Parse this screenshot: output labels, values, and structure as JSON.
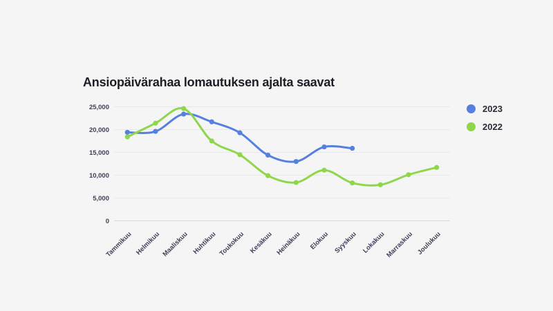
{
  "chart_data": {
    "type": "line",
    "title": "Ansiopäivärahaa lomautuksen ajalta saavat",
    "categories": [
      "Tammikuu",
      "Helmikuu",
      "Maaliskuu",
      "Huhtikuu",
      "Toukokuu",
      "Kesäkuu",
      "Heinäkuu",
      "Elokuu",
      "Syyskuu",
      "Lokakuu",
      "Marraskuu",
      "Joulukuu"
    ],
    "series": [
      {
        "name": "2023",
        "color": "#5580e0",
        "values": [
          19400,
          19600,
          23400,
          21700,
          19300,
          14400,
          13000,
          16200,
          15900,
          null,
          null,
          null
        ]
      },
      {
        "name": "2022",
        "color": "#8fd64a",
        "values": [
          18400,
          21400,
          24600,
          17500,
          14500,
          9900,
          8400,
          11100,
          8300,
          7900,
          10100,
          11700
        ]
      }
    ],
    "xlabel": "",
    "ylabel": "",
    "ylim": [
      0,
      25000
    ],
    "yticks": [
      0,
      5000,
      10000,
      15000,
      20000,
      25000
    ],
    "ytick_labels": [
      "0",
      "5,000",
      "10,000",
      "15,000",
      "20,000",
      "25,000"
    ],
    "grid": true,
    "smooth": true,
    "legend_position": "right-top"
  },
  "colors": {
    "background": "#f5f5f6",
    "gridline": "#e8e8ec",
    "zero_line": "#d9d9de",
    "tick_text": "#3e3e57",
    "title_text": "#1d1d27"
  }
}
